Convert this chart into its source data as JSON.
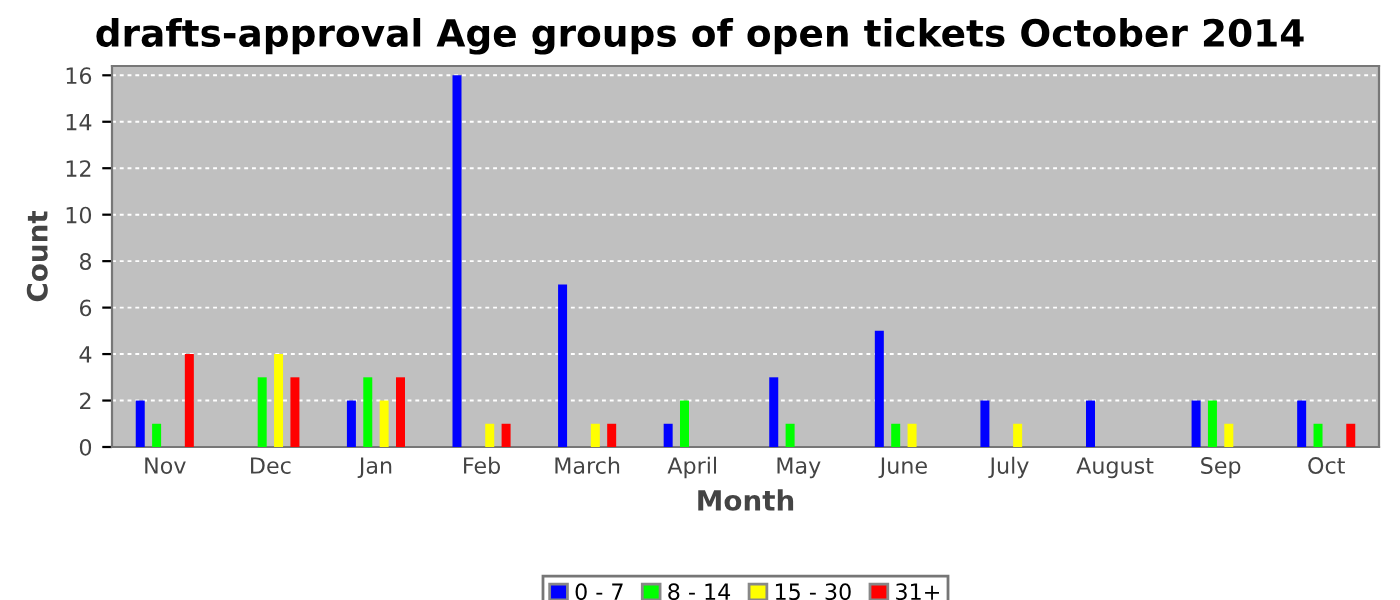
{
  "chart_data": {
    "type": "bar",
    "title": "drafts-approval Age groups of open tickets October 2014",
    "xlabel": "Month",
    "ylabel": "Count",
    "categories": [
      "Nov",
      "Dec",
      "Jan",
      "Feb",
      "March",
      "April",
      "May",
      "June",
      "July",
      "August",
      "Sep",
      "Oct"
    ],
    "series": [
      {
        "name": "0 - 7",
        "color": "#0000ff",
        "values": [
          2,
          0,
          2,
          16,
          7,
          1,
          3,
          5,
          2,
          2,
          2,
          2
        ]
      },
      {
        "name": "8 - 14",
        "color": "#00ff00",
        "values": [
          1,
          3,
          3,
          0,
          0,
          2,
          1,
          1,
          0,
          0,
          2,
          1
        ]
      },
      {
        "name": "15 - 30",
        "color": "#ffff00",
        "values": [
          0,
          4,
          2,
          1,
          1,
          0,
          0,
          1,
          1,
          0,
          1,
          0
        ]
      },
      {
        "name": "31+",
        "color": "#ff0000",
        "values": [
          4,
          3,
          3,
          1,
          1,
          0,
          0,
          0,
          0,
          0,
          0,
          1
        ]
      }
    ],
    "ylim": [
      0,
      16.4
    ],
    "yticks": [
      0,
      2,
      4,
      6,
      8,
      10,
      12,
      14,
      16
    ],
    "grid": "y",
    "legend": "bottom"
  }
}
